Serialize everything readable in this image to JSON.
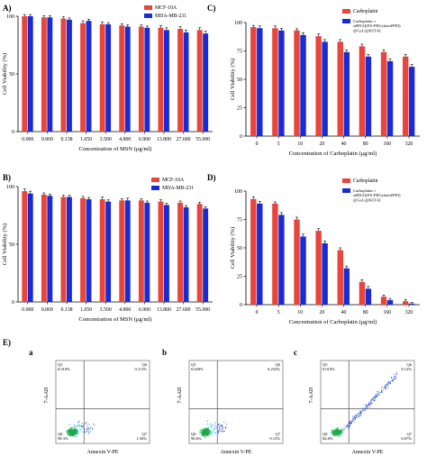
{
  "colors": {
    "red": "#e8453c",
    "blue": "#1a2bd6",
    "flow_green": "#1ea84a",
    "flow_cyan": "#2fc7e0",
    "flow_blue": "#1d4fd6"
  },
  "panels": {
    "A": {
      "label": "A)"
    },
    "B": {
      "label": "B)"
    },
    "C": {
      "label": "C)"
    },
    "D": {
      "label": "D)"
    },
    "E": {
      "label": "E)"
    }
  },
  "chart_data": [
    {
      "id": "A",
      "type": "bar",
      "categories": [
        "0.000",
        "0.069",
        "0.138",
        "1.650",
        "3.500",
        "4.800",
        "6.900",
        "13.800",
        "27.600",
        "55.000"
      ],
      "series": [
        {
          "name": "MCF-10A",
          "values": [
            100,
            99,
            98,
            94,
            93,
            92,
            91,
            90,
            89,
            88
          ],
          "errors": [
            1.5,
            1.5,
            1.5,
            2,
            2,
            1.5,
            1.5,
            2,
            2,
            2
          ]
        },
        {
          "name": "MDA-MB-231",
          "values": [
            100,
            99,
            97,
            96,
            93,
            91,
            90,
            88,
            86,
            85
          ],
          "errors": [
            1.5,
            1.5,
            1.5,
            1.5,
            1.5,
            1.5,
            1.5,
            2,
            2,
            2
          ]
        }
      ],
      "xlabel": "Concentration of MSN (μg/ml)",
      "ylabel": "Cell Viability (%)",
      "ylim": [
        0,
        100
      ],
      "yticks": [
        0,
        50,
        100
      ],
      "legend": "top-right"
    },
    {
      "id": "B",
      "type": "bar",
      "categories": [
        "0.000",
        "0.069",
        "0.138",
        "1.650",
        "3.500",
        "4.800",
        "6.900",
        "13.800",
        "27.600",
        "55.000"
      ],
      "series": [
        {
          "name": "MCF-10A",
          "values": [
            96,
            93,
            91,
            90,
            89,
            88,
            88,
            87,
            86,
            85
          ],
          "errors": [
            2,
            1.5,
            1.5,
            1.5,
            2,
            1.5,
            1.5,
            1.5,
            1.5,
            1.5
          ]
        },
        {
          "name": "MDA-MB-231",
          "values": [
            94,
            92,
            91,
            89,
            87,
            88,
            86,
            84,
            82,
            81
          ],
          "errors": [
            2,
            1.5,
            1.5,
            1.5,
            1.5,
            2,
            1.5,
            1.5,
            1.5,
            1.5
          ]
        }
      ],
      "xlabel": "Concentration of MSN (μg/ml)",
      "ylabel": "Cell Viability (%)",
      "ylim": [
        0,
        100
      ],
      "yticks": [
        0,
        50,
        100
      ],
      "legend": "top-right"
    },
    {
      "id": "C",
      "type": "bar",
      "categories": [
        "0",
        "5",
        "10",
        "20",
        "40",
        "80",
        "160",
        "320"
      ],
      "series": [
        {
          "name": "Carboplatin",
          "values": [
            96,
            95,
            93,
            88,
            83,
            79,
            74,
            70
          ],
          "errors": [
            1.5,
            2,
            1.5,
            2,
            2,
            2,
            2,
            2
          ]
        },
        {
          "name": "Carboplatin + siRNA[(FA-PEGylated/PEI)@GeLi@KIT-6]",
          "values": [
            95,
            93,
            89,
            83,
            74,
            70,
            66,
            61
          ],
          "errors": [
            2,
            2,
            2,
            2,
            2,
            2,
            2,
            2
          ]
        }
      ],
      "xlabel": "Concentration of Carboplatin (μg/ml)",
      "ylabel": "Cell Viability (%)",
      "ylim": [
        0,
        100
      ],
      "yticks": [
        0,
        25,
        50,
        75,
        100
      ],
      "legend": "top-right"
    },
    {
      "id": "D",
      "type": "bar",
      "categories": [
        "0",
        "5",
        "10",
        "20",
        "40",
        "80",
        "160",
        "320"
      ],
      "series": [
        {
          "name": "Carboplatin",
          "values": [
            93,
            89,
            75,
            65,
            48,
            20,
            7,
            3
          ],
          "errors": [
            2,
            1.5,
            2,
            2,
            2,
            2,
            1.5,
            1.5
          ]
        },
        {
          "name": "Carboplatin + siRNA[(FA-PEGylated/PEI)@GeLi@KIT-6]",
          "values": [
            89,
            79,
            60,
            54,
            32,
            14,
            4,
            1
          ],
          "errors": [
            2,
            2,
            2,
            2,
            2,
            2,
            1.5,
            1
          ]
        }
      ],
      "xlabel": "Concentration of Carboplatin (μg/ml)",
      "ylabel": "Cell Viability (%)",
      "ylim": [
        0,
        100
      ],
      "yticks": [
        0,
        25,
        50,
        75,
        100
      ],
      "legend": "top-right"
    }
  ],
  "flow": {
    "xlabel": "Annexin V-PE",
    "ylabel": "7-AAD",
    "plots": [
      {
        "tag": "a",
        "q5": "Q5\n0.010%",
        "q6": "Q6\n0.111%",
        "q7": "Q7\n1.56%",
        "q8": "Q8\n98.3%",
        "q5_label": "Q5",
        "q5_val": "0.010%",
        "q6_label": "Q6",
        "q6_val": "0.111%",
        "q7_label": "Q7",
        "q7_val": "1.56%",
        "q8_label": "Q8",
        "q8_val": "98.3%",
        "shape": "blob"
      },
      {
        "tag": "b",
        "q5_label": "Q5",
        "q5_val": "0.020%",
        "q6_label": "Q6",
        "q6_val": "0.253%",
        "q7_label": "Q7",
        "q7_val": "9.15%",
        "q8_label": "Q8",
        "q8_val": "90.6%",
        "shape": "blob"
      },
      {
        "tag": "c",
        "q5_label": "Q5",
        "q5_val": "0.010%",
        "q6_label": "Q6",
        "q6_val": "8.12%",
        "q7_label": "Q7",
        "q7_val": "6.07%",
        "q8_label": "Q8",
        "q8_val": "84.8%",
        "shape": "diagonal"
      }
    ]
  }
}
